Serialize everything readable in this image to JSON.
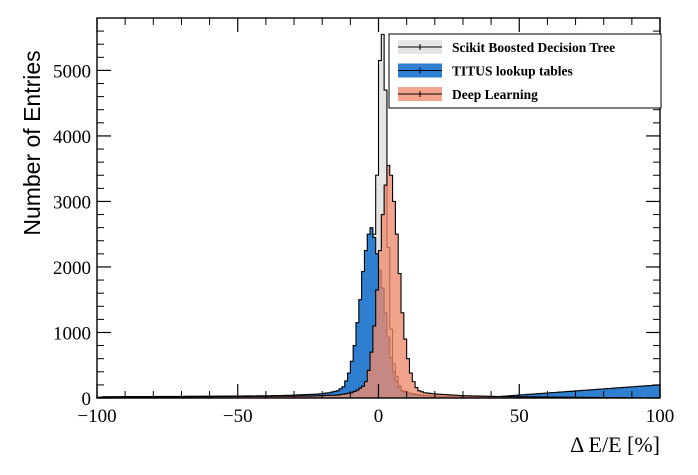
{
  "chart_data": {
    "type": "area",
    "xlabel": "Δ E/E [%]",
    "ylabel": "Number of Entries",
    "xlim": [
      -100,
      100
    ],
    "ylim": [
      0,
      5800
    ],
    "xticks": [
      -100,
      -50,
      0,
      50,
      100
    ],
    "yticks": [
      0,
      1000,
      2000,
      3000,
      4000,
      5000
    ],
    "xtick_labels": [
      "−100",
      "−50",
      "0",
      "50",
      "100"
    ],
    "ytick_labels": [
      "0",
      "1000",
      "2000",
      "3000",
      "4000",
      "5000"
    ],
    "grid": false,
    "legend_position": "top-right",
    "bin_width": 1,
    "series": [
      {
        "name": "Scikit Boosted Decision Tree",
        "fill": "#e6e6e6",
        "line": "#000000",
        "bins": [
          {
            "x": -100,
            "y": 10
          },
          {
            "x": -25,
            "y": 40
          },
          {
            "x": -17,
            "y": 80
          },
          {
            "x": -12,
            "y": 130
          },
          {
            "x": -9,
            "y": 190
          },
          {
            "x": -7,
            "y": 300
          },
          {
            "x": -6,
            "y": 380
          },
          {
            "x": -5,
            "y": 500
          },
          {
            "x": -4,
            "y": 620
          },
          {
            "x": -3,
            "y": 1150
          },
          {
            "x": -2,
            "y": 2500
          },
          {
            "x": -1,
            "y": 3400
          },
          {
            "x": 0,
            "y": 5150
          },
          {
            "x": 1,
            "y": 5550
          },
          {
            "x": 2,
            "y": 4700
          },
          {
            "x": 3,
            "y": 2300
          },
          {
            "x": 4,
            "y": 1050
          },
          {
            "x": 5,
            "y": 520
          },
          {
            "x": 6,
            "y": 330
          },
          {
            "x": 7,
            "y": 190
          },
          {
            "x": 8,
            "y": 120
          },
          {
            "x": 10,
            "y": 80
          },
          {
            "x": 14,
            "y": 50
          },
          {
            "x": 22,
            "y": 20
          },
          {
            "x": 35,
            "y": 10
          },
          {
            "x": 99,
            "y": 0
          }
        ]
      },
      {
        "name": "TITUS lookup tables",
        "fill": "#2e7fd0",
        "line": "#000000",
        "bins": [
          {
            "x": -100,
            "y": 0
          },
          {
            "x": -98,
            "y": 20
          },
          {
            "x": -40,
            "y": 30
          },
          {
            "x": -30,
            "y": 45
          },
          {
            "x": -22,
            "y": 60
          },
          {
            "x": -18,
            "y": 80
          },
          {
            "x": -15,
            "y": 110
          },
          {
            "x": -13,
            "y": 170
          },
          {
            "x": -12,
            "y": 260
          },
          {
            "x": -11,
            "y": 380
          },
          {
            "x": -10,
            "y": 560
          },
          {
            "x": -9,
            "y": 800
          },
          {
            "x": -8,
            "y": 1150
          },
          {
            "x": -7,
            "y": 1500
          },
          {
            "x": -6,
            "y": 1930
          },
          {
            "x": -5,
            "y": 2250
          },
          {
            "x": -4,
            "y": 2500
          },
          {
            "x": -3,
            "y": 2600
          },
          {
            "x": -2,
            "y": 2450
          },
          {
            "x": -1,
            "y": 2200
          },
          {
            "x": 0,
            "y": 1950
          },
          {
            "x": 1,
            "y": 1680
          },
          {
            "x": 2,
            "y": 1300
          },
          {
            "x": 3,
            "y": 930
          },
          {
            "x": 4,
            "y": 620
          },
          {
            "x": 5,
            "y": 400
          },
          {
            "x": 6,
            "y": 260
          },
          {
            "x": 7,
            "y": 160
          },
          {
            "x": 8,
            "y": 100
          },
          {
            "x": 10,
            "y": 70
          },
          {
            "x": 14,
            "y": 40
          },
          {
            "x": 22,
            "y": 25
          },
          {
            "x": 40,
            "y": 15
          },
          {
            "x": 99,
            "y": 200
          }
        ]
      },
      {
        "name": "Deep Learning",
        "fill": "#ef8a6d",
        "line": "#000000",
        "opacity": 0.78,
        "bins": [
          {
            "x": -100,
            "y": 10
          },
          {
            "x": -25,
            "y": 30
          },
          {
            "x": -15,
            "y": 45
          },
          {
            "x": -10,
            "y": 80
          },
          {
            "x": -8,
            "y": 120
          },
          {
            "x": -6,
            "y": 180
          },
          {
            "x": -5,
            "y": 250
          },
          {
            "x": -4,
            "y": 420
          },
          {
            "x": -3,
            "y": 700
          },
          {
            "x": -2,
            "y": 1100
          },
          {
            "x": -1,
            "y": 1650
          },
          {
            "x": 0,
            "y": 2250
          },
          {
            "x": 1,
            "y": 2800
          },
          {
            "x": 2,
            "y": 3250
          },
          {
            "x": 3,
            "y": 3550
          },
          {
            "x": 4,
            "y": 3400
          },
          {
            "x": 5,
            "y": 3000
          },
          {
            "x": 6,
            "y": 2500
          },
          {
            "x": 7,
            "y": 1900
          },
          {
            "x": 8,
            "y": 1300
          },
          {
            "x": 9,
            "y": 900
          },
          {
            "x": 10,
            "y": 600
          },
          {
            "x": 11,
            "y": 380
          },
          {
            "x": 12,
            "y": 250
          },
          {
            "x": 13,
            "y": 160
          },
          {
            "x": 14,
            "y": 110
          },
          {
            "x": 16,
            "y": 80
          },
          {
            "x": 20,
            "y": 60
          },
          {
            "x": 30,
            "y": 35
          },
          {
            "x": 45,
            "y": 20
          },
          {
            "x": 99,
            "y": 0
          }
        ]
      }
    ]
  }
}
